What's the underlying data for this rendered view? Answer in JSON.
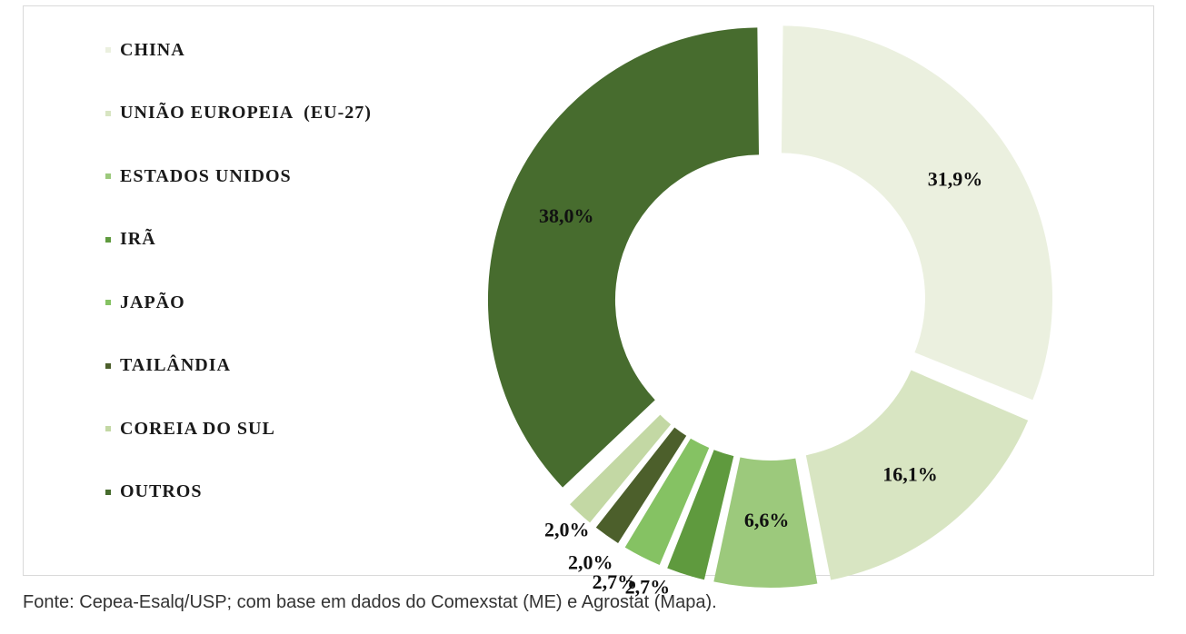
{
  "chart_data": {
    "type": "pie",
    "donut": true,
    "categories": [
      "CHINA",
      "UNIÃO EUROPEIA  (EU-27)",
      "ESTADOS UNIDOS",
      "IRÃ",
      "JAPÃO",
      "TAILÂNDIA",
      "COREIA DO SUL",
      "OUTROS"
    ],
    "values": [
      31.9,
      16.1,
      6.6,
      2.7,
      2.7,
      2.0,
      2.0,
      38.0
    ],
    "labels": [
      "31,9%",
      "16,1%",
      "6,6%",
      "2,7%",
      "2,7%",
      "2,0%",
      "2,0%",
      "38,0%"
    ],
    "colors": [
      "#ebf0df",
      "#d8e5c2",
      "#9cc97c",
      "#5f9a3e",
      "#85c263",
      "#4c5f2b",
      "#c3d8a4",
      "#476c2e"
    ],
    "legend_position": "left"
  },
  "source": "Fonte: Cepea-Esalq/USP; com base em dados do Comexstat (ME) e Agrostat (Mapa)."
}
